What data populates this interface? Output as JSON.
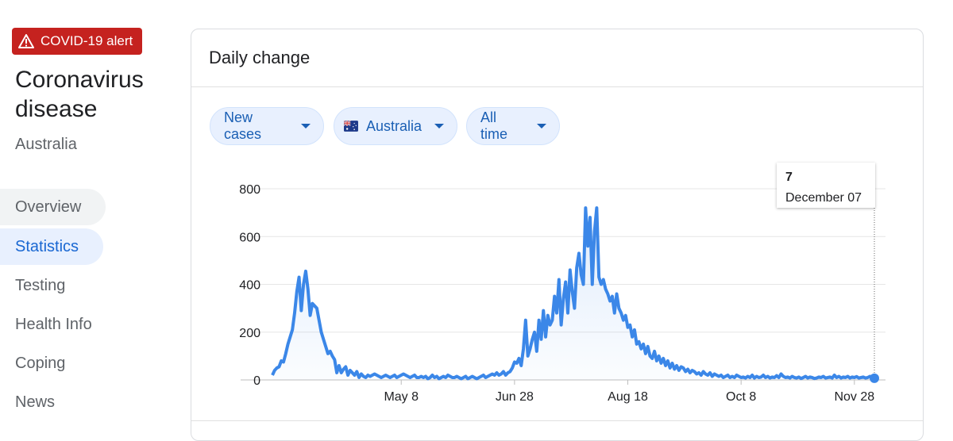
{
  "alert": "COVID-19 alert",
  "title": "Coronavirus disease",
  "location": "Australia",
  "nav": [
    "Overview",
    "Statistics",
    "Testing",
    "Health Info",
    "Coping",
    "News"
  ],
  "card_title": "Daily change",
  "filters": [
    "New cases",
    "Australia",
    "All time"
  ],
  "chart_data": {
    "type": "line",
    "color": "#3b87e8",
    "ylim": [
      0,
      800
    ],
    "yticks": [
      0,
      200,
      400,
      600,
      800
    ],
    "grid": true,
    "tooltip_date": "December 07",
    "categories": [
      null,
      null,
      null,
      null,
      null,
      null,
      null,
      null,
      null,
      null,
      null,
      null,
      null,
      null,
      null,
      null,
      null,
      null,
      null,
      null,
      null,
      null,
      null,
      null,
      null,
      null,
      null,
      null,
      null,
      null,
      null,
      null,
      null,
      null,
      null,
      null,
      null,
      null,
      null,
      null,
      null,
      null,
      null,
      null,
      null,
      null,
      null,
      null,
      null,
      null,
      null,
      null,
      null,
      null,
      null,
      null,
      null,
      null,
      "May 8",
      null,
      null,
      null,
      null,
      null,
      null,
      null,
      null,
      null,
      null,
      null,
      null,
      null,
      null,
      null,
      null,
      null,
      null,
      null,
      null,
      null,
      null,
      null,
      null,
      null,
      null,
      null,
      null,
      null,
      null,
      null,
      null,
      null,
      null,
      null,
      null,
      null,
      null,
      null,
      null,
      null,
      null,
      null,
      null,
      null,
      null,
      null,
      null,
      null,
      null,
      "Jun 28",
      null,
      null,
      null,
      null,
      null,
      null,
      null,
      null,
      null,
      null,
      null,
      null,
      null,
      null,
      null,
      null,
      null,
      null,
      null,
      null,
      null,
      null,
      null,
      null,
      null,
      null,
      null,
      null,
      null,
      null,
      null,
      null,
      null,
      null,
      null,
      null,
      null,
      null,
      null,
      null,
      null,
      null,
      null,
      null,
      null,
      null,
      null,
      null,
      null,
      null,
      "Aug 18",
      null,
      null,
      null,
      null,
      null,
      null,
      null,
      null,
      null,
      null,
      null,
      null,
      null,
      null,
      null,
      null,
      null,
      null,
      null,
      null,
      null,
      null,
      null,
      null,
      null,
      null,
      null,
      null,
      null,
      null,
      null,
      null,
      null,
      null,
      null,
      null,
      null,
      null,
      null,
      null,
      null,
      null,
      null,
      null,
      null,
      null,
      null,
      null,
      null,
      null,
      "Oct 8",
      null,
      null,
      null,
      null,
      null,
      null,
      null,
      null,
      null,
      null,
      null,
      null,
      null,
      null,
      null,
      null,
      null,
      null,
      null,
      null,
      null,
      null,
      null,
      null,
      null,
      null,
      null,
      null,
      null,
      null,
      null,
      null,
      null,
      null,
      null,
      null,
      null,
      null,
      null,
      null,
      null,
      null,
      null,
      null,
      null,
      null,
      null,
      null,
      null,
      null,
      "Nov 28",
      null,
      null,
      null,
      null,
      null,
      null,
      null,
      null,
      null
    ],
    "values": [
      20,
      40,
      50,
      55,
      80,
      75,
      110,
      150,
      180,
      210,
      280,
      370,
      430,
      290,
      400,
      455,
      380,
      270,
      320,
      310,
      300,
      250,
      200,
      170,
      140,
      110,
      120,
      100,
      85,
      30,
      60,
      30,
      45,
      55,
      20,
      40,
      30,
      20,
      35,
      10,
      25,
      15,
      10,
      20,
      15,
      20,
      25,
      20,
      15,
      10,
      15,
      20,
      15,
      10,
      15,
      20,
      10,
      15,
      20,
      25,
      20,
      15,
      10,
      15,
      20,
      10,
      10,
      15,
      10,
      15,
      5,
      10,
      20,
      10,
      15,
      5,
      10,
      15,
      10,
      20,
      15,
      10,
      10,
      15,
      10,
      5,
      10,
      15,
      5,
      10,
      15,
      10,
      5,
      10,
      15,
      20,
      10,
      15,
      20,
      25,
      20,
      30,
      20,
      25,
      35,
      20,
      30,
      35,
      50,
      75,
      70,
      90,
      60,
      130,
      250,
      100,
      130,
      170,
      200,
      120,
      250,
      170,
      290,
      180,
      270,
      230,
      250,
      350,
      280,
      420,
      230,
      340,
      410,
      280,
      460,
      370,
      300,
      470,
      530,
      440,
      400,
      720,
      560,
      680,
      400,
      620,
      720,
      430,
      400,
      420,
      380,
      360,
      330,
      350,
      280,
      360,
      300,
      280,
      250,
      270,
      220,
      230,
      180,
      210,
      150,
      160,
      130,
      150,
      110,
      140,
      100,
      90,
      120,
      80,
      100,
      70,
      90,
      60,
      80,
      50,
      70,
      45,
      60,
      40,
      55,
      50,
      35,
      45,
      30,
      40,
      35,
      25,
      30,
      20,
      35,
      25,
      20,
      30,
      15,
      25,
      20,
      15,
      20,
      10,
      15,
      20,
      10,
      15,
      10,
      20,
      15,
      10,
      12,
      8,
      15,
      10,
      20,
      8,
      15,
      10,
      12,
      20,
      10,
      15,
      8,
      12,
      10,
      18,
      10,
      25,
      15,
      10,
      12,
      8,
      15,
      10,
      8,
      12,
      6,
      10,
      15,
      8,
      12,
      10,
      6,
      8,
      12,
      10,
      15,
      8,
      10,
      12,
      8,
      20,
      10,
      15,
      8,
      12,
      10,
      15,
      8,
      12,
      10,
      14,
      8,
      10,
      12,
      8,
      10,
      15,
      9,
      7
    ]
  }
}
